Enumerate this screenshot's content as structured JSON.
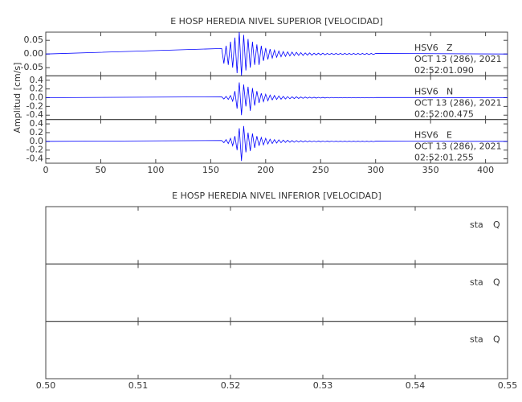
{
  "chart_data": [
    {
      "type": "line",
      "title": "E HOSP HEREDIA NIVEL SUPERIOR [VELOCIDAD]",
      "y_label": "Amplitud [cm/s]",
      "xlim": [
        0,
        420
      ],
      "xticks": [
        0,
        50,
        100,
        150,
        200,
        250,
        300,
        350,
        400
      ],
      "x": [
        0,
        160,
        162,
        164,
        166,
        168,
        170,
        172,
        174,
        176,
        178,
        180,
        182,
        184,
        186,
        188,
        190,
        192,
        194,
        196,
        198,
        200,
        202,
        204,
        206,
        208,
        210,
        212,
        214,
        216,
        218,
        220,
        222,
        224,
        226,
        228,
        230,
        232,
        234,
        236,
        238,
        240,
        242,
        244,
        246,
        248,
        250,
        252,
        254,
        256,
        258,
        260,
        262,
        264,
        266,
        268,
        270,
        272,
        274,
        276,
        278,
        280,
        282,
        284,
        286,
        288,
        290,
        292,
        294,
        296,
        298,
        300,
        420
      ],
      "panels": [
        {
          "station": "HSV6",
          "component": "Z",
          "date": "OCT 13 (286), 2021",
          "time": "02:52:01.090",
          "color": "#0000ff",
          "ylim": [
            -0.08,
            0.08
          ],
          "yticks": [
            -0.05,
            {
              "value": 0,
              "label": "0.00"
            },
            0.05
          ],
          "values": [
            0,
            0.02,
            -0.035,
            0.03,
            -0.04,
            0.045,
            -0.05,
            0.06,
            -0.07,
            0.08,
            -0.08,
            0.07,
            -0.06,
            0.055,
            -0.05,
            0.045,
            -0.04,
            0.035,
            -0.04,
            0.03,
            -0.025,
            0.022,
            -0.02,
            0.018,
            -0.015,
            0.014,
            -0.012,
            0.011,
            -0.01,
            0.009,
            -0.009,
            0.008,
            -0.007,
            0.007,
            -0.006,
            0.006,
            -0.005,
            0.005,
            -0.005,
            0.004,
            -0.004,
            0.004,
            -0.004,
            0.003,
            -0.003,
            0.003,
            -0.003,
            0.003,
            -0.003,
            0.002,
            -0.002,
            0.002,
            -0.002,
            0.002,
            -0.002,
            0.002,
            -0.002,
            0.002,
            -0.002,
            0.002,
            -0.002,
            0.002,
            -0.002,
            0.002,
            -0.002,
            0.002,
            -0.002,
            0.002,
            -0.002,
            0.002,
            -0.002,
            0.002,
            0
          ]
        },
        {
          "station": "HSV6",
          "component": "N",
          "date": "OCT 13 (286), 2021",
          "time": "02:52:00.475",
          "color": "#0000ff",
          "ylim": [
            -0.5,
            0.5
          ],
          "yticks": [
            -0.4,
            -0.2,
            {
              "value": 0,
              "label": "0.0"
            },
            0.2,
            0.4
          ],
          "values": [
            0,
            0.02,
            -0.03,
            0.03,
            -0.04,
            0.05,
            -0.08,
            0.15,
            -0.25,
            0.35,
            -0.4,
            0.3,
            -0.2,
            0.25,
            -0.3,
            0.22,
            -0.18,
            0.15,
            -0.12,
            0.1,
            -0.09,
            0.08,
            -0.07,
            0.06,
            -0.05,
            0.05,
            -0.04,
            0.04,
            -0.035,
            0.03,
            -0.03,
            0.025,
            -0.025,
            0.02,
            -0.02,
            0.02,
            -0.018,
            0.016,
            -0.015,
            0.014,
            -0.013,
            0.012,
            -0.011,
            0.01,
            -0.01,
            0.009,
            -0.009,
            0.008,
            -0.008,
            0.007,
            -0.007,
            0.006,
            -0.005,
            0.005,
            -0.005,
            0.005,
            -0.005,
            0.005,
            -0.005,
            0.005,
            -0.005,
            0.005,
            -0.005,
            0.005,
            -0.005,
            0.005,
            -0.005,
            0.005,
            -0.005,
            0.005,
            -0.005,
            0.005,
            0
          ]
        },
        {
          "station": "HSV6",
          "component": "E",
          "date": "OCT 13 (286), 2021",
          "time": "02:52:01.255",
          "color": "#0000ff",
          "ylim": [
            -0.5,
            0.5
          ],
          "yticks": [
            -0.4,
            -0.2,
            {
              "value": 0,
              "label": "0.0"
            },
            0.2,
            0.4
          ],
          "values": [
            0,
            0.02,
            -0.03,
            0.04,
            -0.05,
            0.07,
            -0.1,
            0.12,
            -0.2,
            0.3,
            -0.45,
            0.35,
            -0.25,
            0.2,
            -0.22,
            0.18,
            -0.15,
            0.12,
            -0.1,
            0.09,
            -0.08,
            0.07,
            -0.06,
            0.05,
            -0.05,
            0.04,
            -0.04,
            0.035,
            -0.03,
            0.03,
            -0.025,
            0.025,
            -0.02,
            0.02,
            -0.02,
            0.018,
            -0.016,
            0.015,
            -0.014,
            0.013,
            -0.012,
            0.011,
            -0.01,
            0.01,
            -0.009,
            0.009,
            -0.008,
            0.008,
            -0.007,
            0.007,
            -0.006,
            0.006,
            -0.005,
            0.005,
            -0.005,
            0.005,
            -0.005,
            0.005,
            -0.005,
            0.005,
            -0.005,
            0.005,
            -0.005,
            0.005,
            -0.005,
            0.005,
            -0.005,
            0.005,
            -0.005,
            0.005,
            -0.005,
            0.005,
            0
          ]
        }
      ]
    },
    {
      "type": "line",
      "title": "E HOSP HEREDIA NIVEL INFERIOR [VELOCIDAD]",
      "xlim": [
        0.5,
        0.55
      ],
      "xticks": [
        {
          "value": 0.5,
          "label": "0.50"
        },
        0.51,
        0.52,
        0.53,
        0.54,
        0.55
      ],
      "panels": [
        {
          "station": "sta",
          "component": "Q"
        },
        {
          "station": "sta",
          "component": "Q"
        },
        {
          "station": "sta",
          "component": "Q"
        }
      ]
    }
  ]
}
